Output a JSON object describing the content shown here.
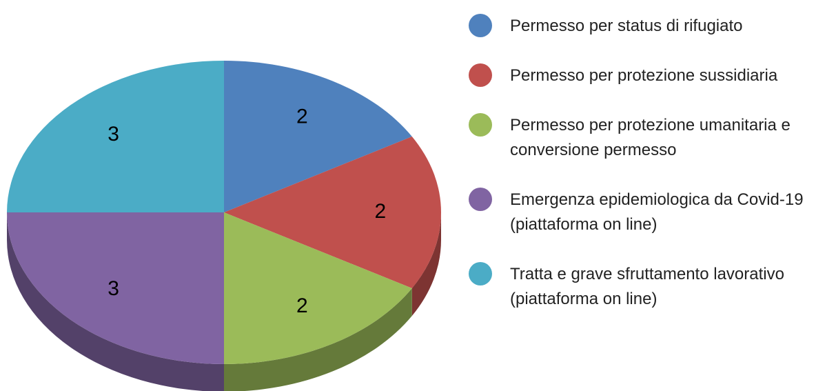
{
  "chart_data": {
    "type": "pie",
    "style": "3d",
    "categories": [
      "Permesso per status di rifugiato",
      "Permesso per protezione sussidiaria",
      "Permesso per protezione umanitaria e conversione permesso",
      "Emergenza epidemiologica da Covid-19 (piattaforma on line)",
      "Tratta e grave sfruttamento lavorativo (piattaforma on line)"
    ],
    "values": [
      2,
      2,
      2,
      3,
      3
    ],
    "colors": [
      "#4f81bd",
      "#c0504d",
      "#9bbb59",
      "#8064a2",
      "#4bacc6"
    ],
    "legend": "right"
  }
}
